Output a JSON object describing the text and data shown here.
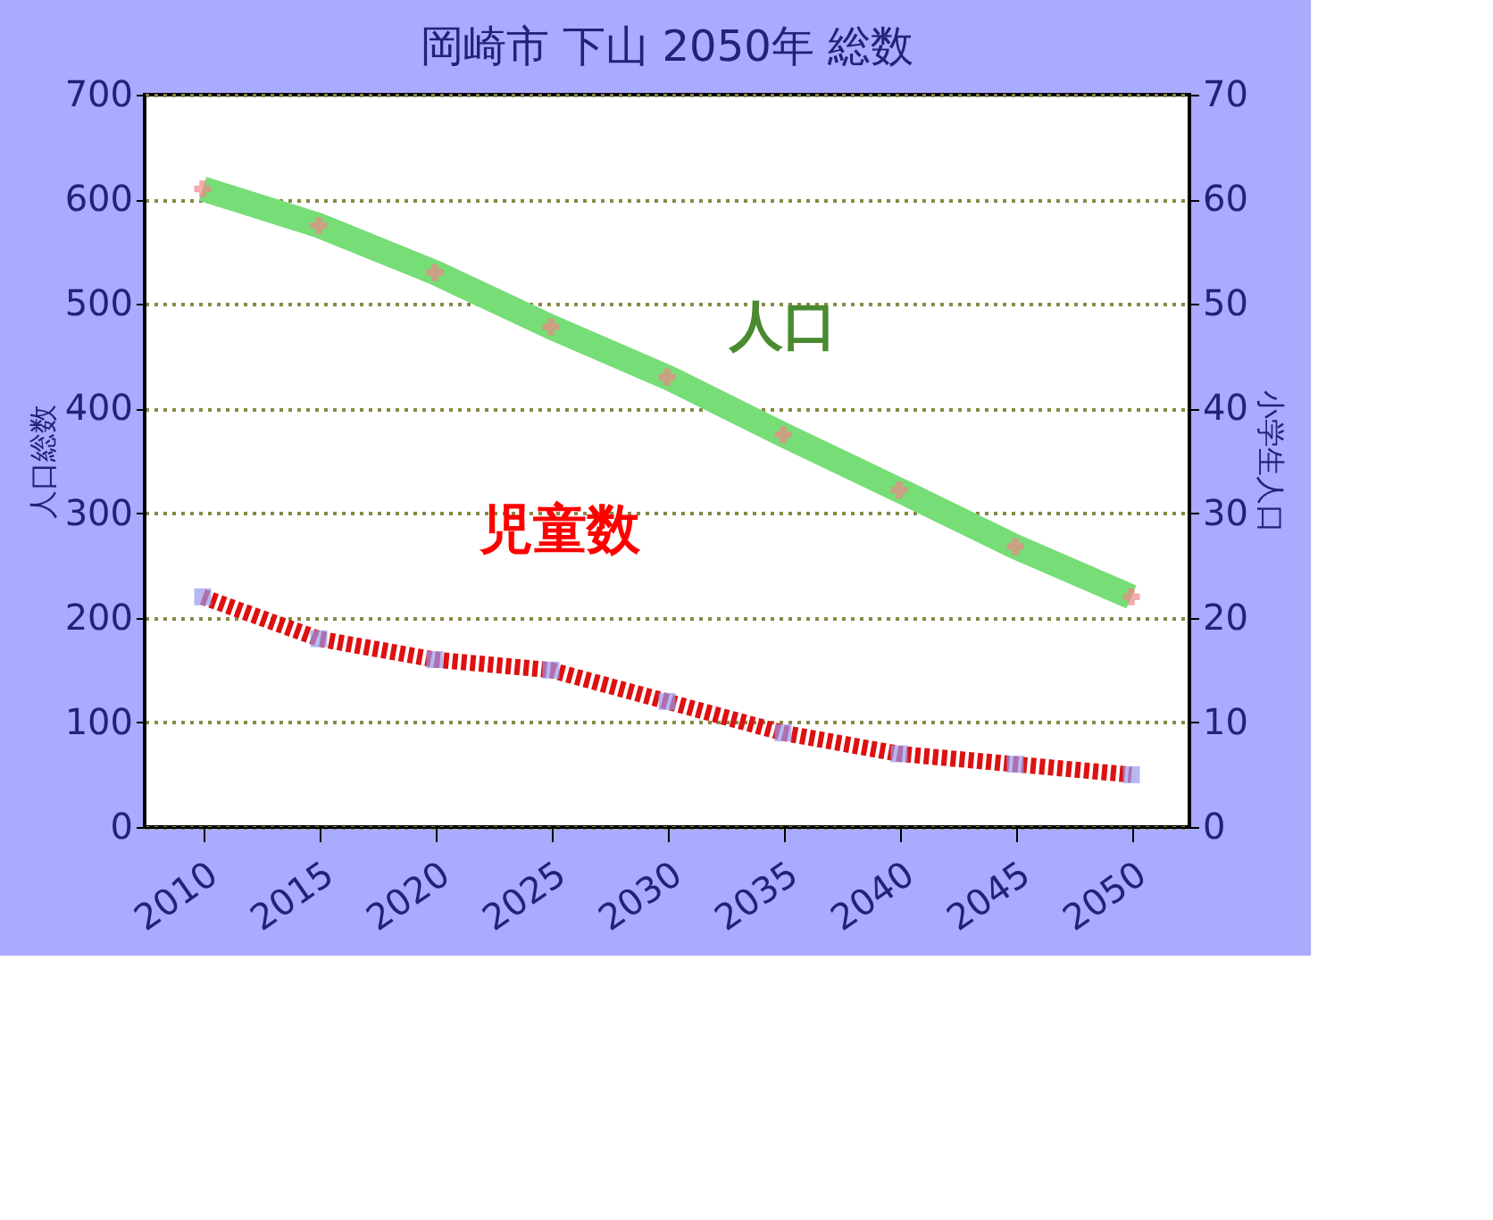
{
  "chart_data": {
    "type": "line",
    "title": "岡崎市 下山 2050年 総数",
    "ylabel": "人口総数",
    "y2label": "小学生人口",
    "categories": [
      "2010",
      "2015",
      "2020",
      "2025",
      "2030",
      "2035",
      "2040",
      "2045",
      "2050"
    ],
    "series": [
      {
        "name": "人口",
        "color": "#77dd77",
        "marker": "cross",
        "line_style": "solid",
        "values": [
          610,
          575,
          530,
          478,
          430,
          375,
          322,
          268,
          220
        ]
      },
      {
        "name": "児童数",
        "color": "#dd1111",
        "marker": "square",
        "line_style": "dashed",
        "axis": "y2",
        "values": [
          22,
          18,
          16,
          15,
          12,
          9,
          7,
          6,
          5
        ]
      }
    ],
    "ylim": [
      0,
      700
    ],
    "yticks": [
      0,
      100,
      200,
      300,
      400,
      500,
      600,
      700
    ],
    "y2lim": [
      0,
      70
    ],
    "y2ticks": [
      0,
      10,
      20,
      30,
      40,
      50,
      60,
      70
    ],
    "grid": "y"
  }
}
